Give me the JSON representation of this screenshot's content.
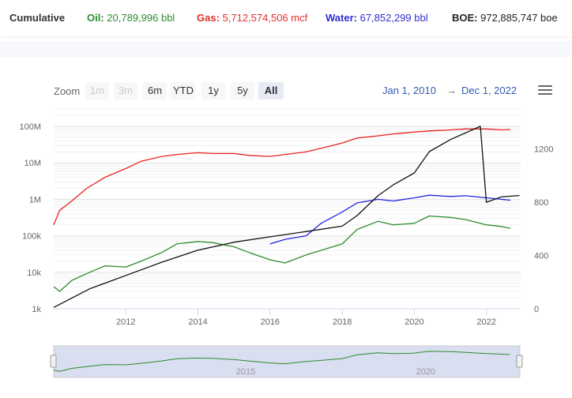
{
  "summary": {
    "cumulative_label": "Cumulative",
    "oil_label": "Oil:",
    "oil_value": "20,789,996 bbl",
    "gas_label": "Gas:",
    "gas_value": "5,712,574,506 mcf",
    "water_label": "Water:",
    "water_value": "67,852,299 bbl",
    "boe_label": "BOE:",
    "boe_value": "972,885,747 boe"
  },
  "colors": {
    "oil": "#2e8b2e",
    "gas": "#e8231f",
    "water": "#2424e0",
    "boe": "#111111",
    "label_oil": "#2e8b2e",
    "label_gas": "#e03030",
    "label_water": "#3030d0",
    "label_boe": "#222222"
  },
  "range_selector": {
    "zoom_label": "Zoom",
    "buttons": [
      {
        "label": "1m",
        "state": "disabled"
      },
      {
        "label": "3m",
        "state": "disabled"
      },
      {
        "label": "6m",
        "state": "normal"
      },
      {
        "label": "YTD",
        "state": "normal"
      },
      {
        "label": "1y",
        "state": "normal"
      },
      {
        "label": "5y",
        "state": "normal"
      },
      {
        "label": "All",
        "state": "active"
      }
    ],
    "from": "Jan 1, 2010",
    "separator": "→",
    "to": "Dec 1, 2022"
  },
  "menu_icon": "hamburger-menu-icon",
  "chart_data": {
    "type": "line",
    "x_range": [
      "2010-01",
      "2022-12"
    ],
    "left_axis": {
      "scale": "log",
      "ticks": [
        "1k",
        "10k",
        "100k",
        "1M",
        "10M",
        "100M"
      ],
      "min": 1000,
      "max": 300000000
    },
    "right_axis": {
      "scale": "linear",
      "ticks": [
        "0",
        "400",
        "800",
        "1200"
      ],
      "min": 0,
      "max": 1500
    },
    "x_ticks": [
      "2012",
      "2014",
      "2016",
      "2018",
      "2020",
      "2022"
    ],
    "grid": true,
    "legend": "none",
    "series": [
      {
        "key": "gas",
        "axis": "left",
        "points": [
          [
            "2010-01",
            200000
          ],
          [
            "2010-03",
            500000
          ],
          [
            "2010-07",
            900000
          ],
          [
            "2010-12",
            2000000
          ],
          [
            "2011-06",
            4000000
          ],
          [
            "2012-01",
            7000000
          ],
          [
            "2012-06",
            11000000
          ],
          [
            "2013-01",
            15000000
          ],
          [
            "2013-06",
            17000000
          ],
          [
            "2014-01",
            19000000
          ],
          [
            "2014-06",
            18000000
          ],
          [
            "2015-01",
            18000000
          ],
          [
            "2015-06",
            16000000
          ],
          [
            "2016-01",
            15000000
          ],
          [
            "2016-06",
            17000000
          ],
          [
            "2017-01",
            20000000
          ],
          [
            "2017-06",
            25000000
          ],
          [
            "2018-01",
            35000000
          ],
          [
            "2018-06",
            48000000
          ],
          [
            "2019-01",
            55000000
          ],
          [
            "2019-06",
            62000000
          ],
          [
            "2020-01",
            70000000
          ],
          [
            "2020-06",
            75000000
          ],
          [
            "2021-01",
            80000000
          ],
          [
            "2021-06",
            85000000
          ],
          [
            "2022-01",
            85000000
          ],
          [
            "2022-06",
            80000000
          ],
          [
            "2022-09",
            82000000
          ]
        ]
      },
      {
        "key": "oil",
        "axis": "left",
        "points": [
          [
            "2010-01",
            4000
          ],
          [
            "2010-03",
            3000
          ],
          [
            "2010-07",
            6000
          ],
          [
            "2011-01",
            10000
          ],
          [
            "2011-06",
            15000
          ],
          [
            "2012-01",
            14000
          ],
          [
            "2012-06",
            20000
          ],
          [
            "2013-01",
            35000
          ],
          [
            "2013-06",
            60000
          ],
          [
            "2014-01",
            70000
          ],
          [
            "2014-06",
            65000
          ],
          [
            "2015-01",
            50000
          ],
          [
            "2015-06",
            35000
          ],
          [
            "2016-01",
            22000
          ],
          [
            "2016-06",
            18000
          ],
          [
            "2017-01",
            30000
          ],
          [
            "2017-06",
            40000
          ],
          [
            "2018-01",
            60000
          ],
          [
            "2018-06",
            150000
          ],
          [
            "2019-01",
            250000
          ],
          [
            "2019-06",
            200000
          ],
          [
            "2020-01",
            220000
          ],
          [
            "2020-06",
            350000
          ],
          [
            "2021-01",
            320000
          ],
          [
            "2021-06",
            280000
          ],
          [
            "2022-01",
            200000
          ],
          [
            "2022-06",
            180000
          ],
          [
            "2022-09",
            160000
          ]
        ]
      },
      {
        "key": "water",
        "axis": "left",
        "points": [
          [
            "2016-01",
            60000
          ],
          [
            "2016-06",
            80000
          ],
          [
            "2017-01",
            100000
          ],
          [
            "2017-06",
            220000
          ],
          [
            "2018-01",
            450000
          ],
          [
            "2018-06",
            800000
          ],
          [
            "2019-01",
            1000000
          ],
          [
            "2019-06",
            900000
          ],
          [
            "2020-01",
            1100000
          ],
          [
            "2020-06",
            1300000
          ],
          [
            "2021-01",
            1200000
          ],
          [
            "2021-06",
            1250000
          ],
          [
            "2022-01",
            1100000
          ],
          [
            "2022-06",
            1000000
          ],
          [
            "2022-09",
            950000
          ]
        ]
      },
      {
        "key": "boe",
        "axis": "right",
        "points": [
          [
            "2010-01",
            10
          ],
          [
            "2011-01",
            150
          ],
          [
            "2012-01",
            250
          ],
          [
            "2013-01",
            350
          ],
          [
            "2014-01",
            440
          ],
          [
            "2015-01",
            500
          ],
          [
            "2016-01",
            540
          ],
          [
            "2017-01",
            580
          ],
          [
            "2018-01",
            620
          ],
          [
            "2018-06",
            700
          ],
          [
            "2019-01",
            850
          ],
          [
            "2019-06",
            930
          ],
          [
            "2020-01",
            1020
          ],
          [
            "2020-06",
            1180
          ],
          [
            "2021-01",
            1270
          ],
          [
            "2021-06",
            1320
          ],
          [
            "2021-11",
            1370
          ],
          [
            "2022-01",
            800
          ],
          [
            "2022-06",
            840
          ],
          [
            "2022-12",
            850
          ]
        ]
      }
    ]
  },
  "navigator": {
    "labels": [
      "2015",
      "2020"
    ],
    "series_key": "oil"
  }
}
